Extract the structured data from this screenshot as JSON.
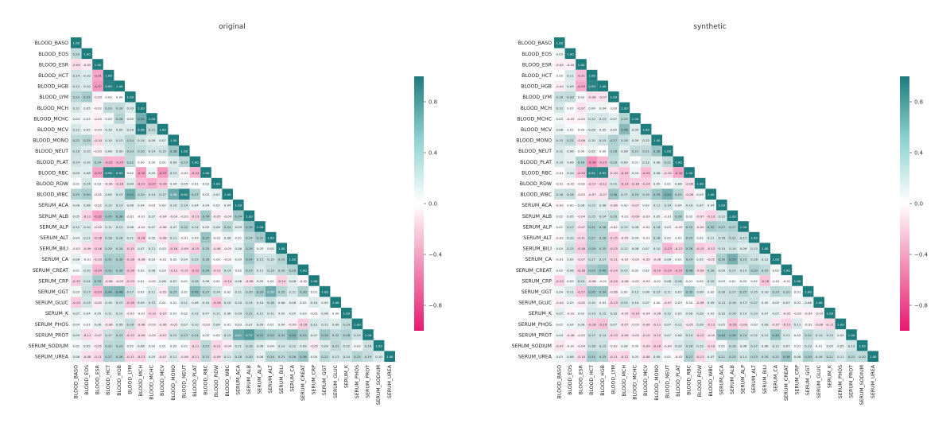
{
  "chart_data": [
    {
      "type": "heatmap",
      "title": "original",
      "variables": [
        "BLOOD_BASO",
        "BLOOD_EOS",
        "BLOOD_ESR",
        "BLOOD_HCT",
        "BLOOD_HGB",
        "BLOOD_LYM",
        "BLOOD_MCH",
        "BLOOD_MCHC",
        "BLOOD_MCV",
        "BLOOD_MONO",
        "BLOOD_NEUT",
        "BLOOD_PLAT",
        "BLOOD_RBC",
        "BLOOD_RDW",
        "BLOOD_WBC",
        "SERUM_ACA",
        "SERUM_ALB",
        "SERUM_ALP",
        "SERUM_ALT",
        "SERUM_BILI",
        "SERUM_CA",
        "SERUM_CREAT",
        "SERUM_CRP",
        "SERUM_GGT",
        "SERUM_GLUC",
        "SERUM_K",
        "SERUM_PHOS",
        "SERUM_PROT",
        "SERUM_SODIUM",
        "SERUM_UREA"
      ],
      "lower_triangle_only": true,
      "diagonal_value": 1.0,
      "matrix": [
        [
          1.0
        ],
        [
          0.2,
          1.0
        ],
        [
          -0.09,
          -0.05,
          1.0
        ],
        [
          0.14,
          0.1,
          -0.31,
          1.0
        ],
        [
          0.13,
          0.1,
          -0.37,
          0.95,
          1.0
        ],
        [
          0.23,
          0.32,
          -0.03,
          0.0,
          0.0,
          1.0
        ],
        [
          0.11,
          0.05,
          -0.02,
          0.2,
          0.2,
          0.1,
          1.0
        ],
        [
          0.04,
          0.03,
          -0.03,
          0.03,
          0.26,
          0.05,
          0.55,
          1.0
        ],
        [
          0.12,
          0.05,
          -0.03,
          0.1,
          0.09,
          0.1,
          0.96,
          0.21,
          1.0
        ],
        [
          0.22,
          0.25,
          -0.1,
          0.1,
          0.13,
          0.24,
          0.14,
          0.09,
          0.07,
          1.0
        ],
        [
          0.16,
          0.1,
          -0.03,
          0.06,
          0.09,
          0.23,
          0.2,
          0.14,
          0.15,
          0.36,
          1.0
        ],
        [
          0.14,
          0.1,
          0.24,
          -0.25,
          -0.25,
          0.22,
          0.0,
          0.0,
          0.01,
          0.09,
          0.23,
          1.0
        ],
        [
          0.09,
          0.08,
          -0.33,
          0.9,
          0.93,
          0.02,
          -0.34,
          0.05,
          -0.37,
          0.13,
          -0.02,
          -0.24,
          1.0
        ],
        [
          0.01,
          0.14,
          0.02,
          -0.06,
          -0.16,
          0.09,
          -0.21,
          -0.27,
          -0.18,
          0.04,
          0.05,
          0.01,
          0.02,
          1.0
        ],
        [
          0.25,
          0.3,
          -0.02,
          0.09,
          0.13,
          0.54,
          0.2,
          0.14,
          0.17,
          0.58,
          0.92,
          0.27,
          0.03,
          0.07,
          1.0
        ],
        [
          0.06,
          0.08,
          -0.02,
          0.12,
          0.13,
          0.06,
          0.04,
          -0.01,
          0.02,
          0.1,
          0.14,
          0.04,
          0.04,
          0.02,
          0.04,
          1.0
        ],
        [
          0.05,
          -0.12,
          -0.32,
          0.35,
          0.38,
          -0.01,
          -0.01,
          0.07,
          -0.04,
          -0.04,
          -0.03,
          -0.13,
          0.34,
          -0.05,
          -0.04,
          0.34,
          1.0
        ],
        [
          0.12,
          0.1,
          -0.05,
          0.11,
          0.13,
          0.06,
          -0.02,
          0.07,
          -0.06,
          0.07,
          0.22,
          0.14,
          0.05,
          0.09,
          0.24,
          0.09,
          0.39,
          1.0
        ],
        [
          0.04,
          0.11,
          -0.16,
          0.18,
          0.18,
          0.11,
          -0.18,
          0.05,
          -0.08,
          0.11,
          -0.01,
          0.03,
          0.37,
          -0.01,
          0.06,
          0.01,
          0.24,
          0.32,
          1.0
        ],
        [
          -0.03,
          -0.09,
          -0.16,
          0.2,
          0.2,
          -0.15,
          0.07,
          0.11,
          0.03,
          -0.16,
          -0.09,
          -0.15,
          0.25,
          -0.08,
          -0.03,
          0.06,
          0.29,
          0.03,
          0.05,
          1.0
        ],
        [
          0.06,
          -0.01,
          -0.1,
          0.31,
          0.3,
          -0.16,
          -0.06,
          0.03,
          -0.01,
          0.02,
          0.04,
          0.15,
          0.26,
          0.0,
          -0.02,
          0.03,
          0.34,
          0.15,
          0.15,
          0.25,
          1.0
        ],
        [
          0.01,
          0.1,
          -0.24,
          0.32,
          0.3,
          -0.18,
          0.02,
          0.08,
          0.03,
          -0.12,
          -0.12,
          -0.22,
          0.34,
          -0.12,
          0.14,
          0.02,
          0.23,
          0.11,
          0.19,
          0.2,
          0.26,
          1.0
        ],
        [
          -0.15,
          0.14,
          0.33,
          -0.08,
          -0.05,
          -0.13,
          0.01,
          -0.02,
          0.06,
          0.07,
          0.01,
          0.18,
          0.06,
          0.01,
          -0.14,
          0.06,
          -0.08,
          0.05,
          0.01,
          -0.14,
          0.08,
          -0.02,
          1.0
        ],
        [
          0.03,
          0.17,
          -0.23,
          0.44,
          0.48,
          0.17,
          0.02,
          0.11,
          -0.05,
          0.27,
          0.01,
          0.45,
          0.27,
          0.14,
          0.02,
          0.11,
          0.2,
          0.33,
          0.58,
          0.25,
          0.11,
          0.3,
          0.01,
          1.0
        ],
        [
          -0.15,
          0.13,
          -0.05,
          0.1,
          0.13,
          -0.18,
          0.09,
          0.13,
          0.01,
          0.01,
          0.11,
          0.06,
          0.1,
          -0.18,
          0.1,
          0.1,
          0.14,
          0.1,
          0.18,
          0.06,
          0.06,
          0.02,
          0.1,
          0.05,
          1.0
        ],
        [
          0.07,
          0.04,
          0.05,
          0.11,
          0.12,
          -0.03,
          -0.01,
          -0.12,
          -0.07,
          0.01,
          0.02,
          0.12,
          0.07,
          0.11,
          0.06,
          0.09,
          0.21,
          0.12,
          0.11,
          0.05,
          0.05,
          0.03,
          -0.01,
          0.06,
          0.0,
          1.0
        ],
        [
          0.04,
          0.01,
          0.06,
          -0.06,
          0.09,
          0.18,
          -0.08,
          -0.03,
          -0.06,
          -0.05,
          0.07,
          0.1,
          -0.03,
          0.09,
          0.01,
          0.03,
          0.07,
          0.09,
          0.01,
          0.04,
          -0.04,
          -0.16,
          0.12,
          0.11,
          0.09,
          0.19,
          1.0
        ],
        [
          0.09,
          -0.11,
          -0.07,
          0.17,
          0.23,
          -0.13,
          -0.09,
          -0.03,
          -0.07,
          0.15,
          0.23,
          0.24,
          0.02,
          0.02,
          0.15,
          0.61,
          0.72,
          0.42,
          0.34,
          0.31,
          0.5,
          0.33,
          0.07,
          0.35,
          0.22,
          0.28,
          0.15,
          1.0
        ],
        [
          0.02,
          0.05,
          -0.05,
          0.22,
          0.23,
          0.02,
          0.06,
          0.02,
          0.01,
          0.02,
          0.01,
          -0.11,
          0.21,
          -0.11,
          -0.04,
          0.11,
          0.18,
          0.08,
          0.04,
          0.12,
          0.12,
          0.09,
          -0.05,
          0.09,
          0.21,
          0.12,
          0.03,
          0.16,
          1.0
        ],
        [
          0.06,
          -0.08,
          -0.11,
          0.27,
          0.26,
          -0.11,
          -0.13,
          0.05,
          -0.07,
          0.11,
          -0.06,
          -0.11,
          0.21,
          -0.09,
          0.11,
          0.18,
          0.2,
          0.06,
          0.24,
          0.21,
          0.26,
          0.36,
          0.04,
          0.22,
          0.13,
          0.14,
          0.25,
          0.19,
          0.1,
          1.0
        ]
      ],
      "colorbar": {
        "min": -1.0,
        "max": 1.0,
        "ticks": [
          -0.8,
          -0.4,
          0.0,
          0.4,
          0.8
        ],
        "tick_labels": [
          "−0.8",
          "−0.4",
          "0.0",
          "0.4",
          "0.8"
        ]
      },
      "colors": {
        "negative": "#e8186f",
        "zero": "#ffffff",
        "positive": "#1f7c7d"
      }
    },
    {
      "type": "heatmap",
      "title": "synthetic",
      "variables": [
        "BLOOD_BASO",
        "BLOOD_EOS",
        "BLOOD_ESR",
        "BLOOD_HCT",
        "BLOOD_HGB",
        "BLOOD_LYM",
        "BLOOD_MCH",
        "BLOOD_MCHC",
        "BLOOD_MCV",
        "BLOOD_MONO",
        "BLOOD_NEUT",
        "BLOOD_PLAT",
        "BLOOD_RBC",
        "BLOOD_RDW",
        "BLOOD_WBC",
        "SERUM_ACA",
        "SERUM_ALB",
        "SERUM_ALP",
        "SERUM_ALT",
        "SERUM_BILI",
        "SERUM_CA",
        "SERUM_CREAT",
        "SERUM_CRP",
        "SERUM_GGT",
        "SERUM_GLUC",
        "SERUM_K",
        "SERUM_PHOS",
        "SERUM_PROT",
        "SERUM_SODIUM",
        "SERUM_UREA"
      ],
      "lower_triangle_only": true,
      "diagonal_value": 1.0,
      "matrix": [
        [
          1.0
        ],
        [
          0.03,
          1.0
        ],
        [
          -0.04,
          -0.04,
          1.0
        ],
        [
          0.0,
          0.11,
          -0.21,
          1.0
        ],
        [
          -0.04,
          0.09,
          -0.29,
          0.93,
          1.0
        ],
        [
          0.18,
          0.2,
          0.02,
          -0.08,
          -0.07,
          1.0
        ],
        [
          0.12,
          0.01,
          -0.07,
          0.04,
          0.04,
          0.0,
          1.0
        ],
        [
          0.03,
          -0.03,
          -0.03,
          0.12,
          0.13,
          0.07,
          0.25,
          1.0
        ],
        [
          0.06,
          0.01,
          0.0,
          0.09,
          0.05,
          0.05,
          0.46,
          0.09,
          1.0
        ],
        [
          0.15,
          0.21,
          -0.09,
          0.1,
          0.15,
          0.27,
          0.18,
          0.09,
          0.12,
          1.0
        ],
        [
          0.11,
          0.06,
          -0.0,
          0.05,
          0.0,
          0.26,
          0.08,
          0.21,
          0.21,
          0.36,
          1.0
        ],
        [
          0.1,
          0.06,
          0.26,
          -0.38,
          -0.23,
          0.2,
          0.09,
          0.01,
          0.12,
          0.08,
          0.21,
          1.0
        ],
        [
          -0.01,
          0.1,
          -0.2,
          0.91,
          0.93,
          -0.1,
          -0.19,
          0.04,
          -0.22,
          0.08,
          -0.1,
          -0.3,
          1.0
        ],
        [
          -0.01,
          -0.02,
          -0.02,
          -0.12,
          -0.12,
          0.12,
          -0.19,
          -0.16,
          -0.14,
          0.05,
          0.01,
          0.06,
          -0.08,
          1.0
        ],
        [
          0.16,
          0.18,
          -0.03,
          -0.07,
          -0.07,
          0.36,
          0.17,
          0.23,
          0.19,
          0.35,
          0.52,
          0.25,
          -0.08,
          0.03,
          1.0
        ],
        [
          -0.02,
          0.0,
          0.06,
          0.13,
          0.08,
          -0.06,
          0.02,
          -0.07,
          0.02,
          0.11,
          0.14,
          0.04,
          0.1,
          0.07,
          0.04,
          1.0
        ],
        [
          0.02,
          0.05,
          -0.04,
          0.15,
          0.14,
          0.2,
          -0.01,
          -0.09,
          -0.03,
          0.05,
          -0.01,
          0.28,
          0.02,
          -0.07,
          -0.13,
          0.12,
          1.0
        ],
        [
          0.01,
          0.17,
          -0.07,
          0.31,
          0.28,
          -0.02,
          0.13,
          0.08,
          -0.02,
          0.18,
          0.03,
          -0.03,
          0.25,
          -0.05,
          0.32,
          0.27,
          0.27,
          1.0
        ],
        [
          -0.02,
          0.1,
          -0.11,
          0.27,
          0.26,
          -0.15,
          -0.05,
          0.04,
          -0.01,
          0.18,
          0.02,
          0.01,
          0.25,
          0.02,
          0.11,
          0.16,
          0.21,
          0.17,
          1.0
        ],
        [
          0.04,
          0.15,
          -0.16,
          0.29,
          0.25,
          -0.15,
          0.12,
          0.08,
          0.07,
          0.1,
          -0.23,
          -0.13,
          0.28,
          -0.15,
          -0.12,
          0.14,
          0.14,
          0.09,
          0.13,
          1.0
        ],
        [
          -0.01,
          0.05,
          -0.07,
          0.17,
          0.17,
          -0.11,
          -0.03,
          -0.03,
          -0.05,
          -0.06,
          0.06,
          0.01,
          0.24,
          0.05,
          -0.05,
          0.3,
          0.53,
          0.23,
          0.16,
          0.12,
          1.0
        ],
        [
          0.02,
          0.08,
          -0.16,
          0.33,
          0.4,
          -0.14,
          0.13,
          0.02,
          0.02,
          -0.19,
          -0.23,
          -0.23,
          0.36,
          -0.09,
          0.2,
          0.09,
          0.17,
          0.14,
          0.29,
          0.22,
          0.02,
          1.0
        ],
        [
          -0.13,
          0.03,
          0.15,
          -0.06,
          -0.01,
          -0.14,
          -0.06,
          -0.02,
          -0.03,
          -0.01,
          0.08,
          0.16,
          0.01,
          0.02,
          0.15,
          0.03,
          0.01,
          0.03,
          0.02,
          -0.18,
          -0.01,
          -0.01,
          1.0
        ],
        [
          0.04,
          0.11,
          -0.17,
          0.35,
          0.34,
          -0.06,
          0.02,
          0.12,
          0.08,
          0.13,
          0.11,
          0.07,
          0.32,
          0.09,
          0.02,
          0.16,
          0.17,
          0.25,
          0.15,
          0.1,
          0.23,
          0.2,
          0.01,
          1.0
        ],
        [
          -0.04,
          0.03,
          -0.05,
          0.1,
          0.03,
          -0.13,
          0.15,
          0.1,
          0.07,
          0.0,
          -0.07,
          0.03,
          0.0,
          -0.08,
          0.09,
          0.14,
          0.16,
          0.13,
          0.17,
          0.05,
          0.05,
          0.07,
          0.03,
          0.06,
          1.0
        ],
        [
          0.07,
          -0.02,
          0.02,
          0.13,
          0.12,
          0.1,
          -0.05,
          -0.14,
          -0.04,
          -0.06,
          0.12,
          0.05,
          0.08,
          0.09,
          0.03,
          0.1,
          0.16,
          0.1,
          0.13,
          0.07,
          0.07,
          -0.05,
          -0.03,
          -0.03,
          -0.03,
          1.0
        ],
        [
          0.02,
          0.04,
          0.06,
          -0.16,
          -0.19,
          0.07,
          -0.07,
          -0.03,
          -0.08,
          -0.11,
          0.07,
          0.11,
          -0.05,
          0.09,
          -0.12,
          0.05,
          -0.18,
          -0.09,
          0.03,
          0.09,
          -0.07,
          -0.13,
          0.11,
          -0.02,
          -0.08,
          -0.11,
          1.0
        ],
        [
          0.04,
          -0.06,
          -0.03,
          0.17,
          0.14,
          -0.13,
          -0.09,
          -0.05,
          -0.1,
          -0.12,
          0.07,
          0.06,
          0.14,
          -0.12,
          -0.05,
          0.4,
          0.39,
          0.24,
          0.12,
          0.12,
          0.4,
          0.11,
          0.03,
          0.22,
          0.14,
          0.15,
          0.05,
          1.0
        ],
        [
          -0.07,
          -0.02,
          -0.04,
          0.16,
          0.15,
          -0.02,
          0.04,
          0.0,
          -0.09,
          -0.16,
          -0.04,
          0.1,
          0.18,
          0.12,
          -0.1,
          0.02,
          0.18,
          0.06,
          0.17,
          0.06,
          0.12,
          0.07,
          0.01,
          0.13,
          0.01,
          0.05,
          0.05,
          0.13,
          1.0
        ],
        [
          0.03,
          0.08,
          -0.1,
          0.31,
          0.25,
          -0.11,
          -0.12,
          0.03,
          -0.08,
          0.09,
          0.01,
          -0.02,
          0.27,
          -0.11,
          0.07,
          0.21,
          0.25,
          0.14,
          0.23,
          0.2,
          0.21,
          0.38,
          0.08,
          0.3,
          0.16,
          0.21,
          0.11,
          0.22,
          0.2,
          1.0
        ]
      ],
      "colorbar": {
        "min": -1.0,
        "max": 1.0,
        "ticks": [
          -0.8,
          -0.4,
          0.0,
          0.4,
          0.8
        ],
        "tick_labels": [
          "−0.8",
          "−0.4",
          "0.0",
          "0.4",
          "0.8"
        ]
      },
      "colors": {
        "negative": "#e8186f",
        "zero": "#ffffff",
        "positive": "#1f7c7d"
      }
    }
  ]
}
